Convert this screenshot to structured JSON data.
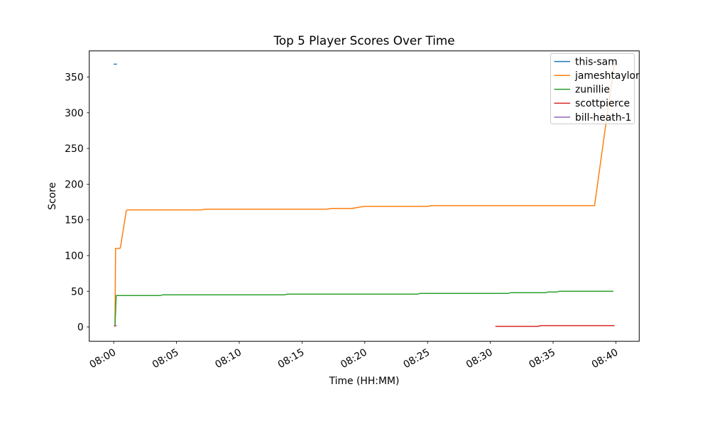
{
  "figure": {
    "background": "#ffffff",
    "title": "Top 5 Player Scores Over Time"
  },
  "chart_data": {
    "type": "line",
    "title": "Top 5 Player Scores Over Time",
    "xlabel": "Time (HH:MM)",
    "ylabel": "Score",
    "grid": false,
    "legend_position": "upper right",
    "x_unit": "minutes after 08:00",
    "xlim": [
      -1.95,
      41.86
    ],
    "ylim": [
      -20,
      386.6
    ],
    "xticks": {
      "values": [
        0,
        5,
        10,
        15,
        20,
        25,
        30,
        35,
        40
      ],
      "labels": [
        "08:00",
        "08:05",
        "08:10",
        "08:15",
        "08:20",
        "08:25",
        "08:30",
        "08:35",
        "08:40"
      ]
    },
    "yticks": [
      0,
      50,
      100,
      150,
      200,
      250,
      300,
      350
    ],
    "series": [
      {
        "name": "this-sam",
        "color": "#1f77b4",
        "points": [
          [
            0.0,
            368
          ],
          [
            0.25,
            368
          ]
        ]
      },
      {
        "name": "jameshtaylor",
        "color": "#ff7f0e",
        "points": [
          [
            0.1,
            0
          ],
          [
            0.15,
            110
          ],
          [
            0.5,
            110
          ],
          [
            0.55,
            113
          ],
          [
            0.7,
            130
          ],
          [
            1.0,
            163
          ],
          [
            1.1,
            164
          ],
          [
            7.0,
            164
          ],
          [
            7.3,
            165
          ],
          [
            17.0,
            165
          ],
          [
            17.3,
            166
          ],
          [
            19.0,
            166
          ],
          [
            19.3,
            167
          ],
          [
            19.6,
            168
          ],
          [
            20.0,
            169
          ],
          [
            25.0,
            169
          ],
          [
            25.3,
            170
          ],
          [
            38.3,
            170
          ],
          [
            39.2,
            284
          ],
          [
            39.9,
            371
          ]
        ]
      },
      {
        "name": "zunillie",
        "color": "#2ca02c",
        "points": [
          [
            0.1,
            1
          ],
          [
            0.2,
            44
          ],
          [
            3.7,
            44
          ],
          [
            3.9,
            45
          ],
          [
            13.6,
            45
          ],
          [
            13.8,
            46
          ],
          [
            24.2,
            46
          ],
          [
            24.4,
            47
          ],
          [
            31.4,
            47
          ],
          [
            31.6,
            48
          ],
          [
            34.4,
            48
          ],
          [
            34.6,
            49
          ],
          [
            35.3,
            49
          ],
          [
            35.5,
            50
          ],
          [
            39.8,
            50
          ]
        ]
      },
      {
        "name": "scottpierce",
        "color": "#d62728",
        "points": [
          [
            30.4,
            1
          ],
          [
            33.8,
            1
          ],
          [
            34.0,
            2
          ],
          [
            39.9,
            2
          ]
        ]
      },
      {
        "name": "bill-heath-1",
        "color": "#9467bd",
        "points": [
          [
            0.0,
            2
          ],
          [
            0.25,
            2
          ]
        ]
      }
    ],
    "legend": [
      "this-sam",
      "jameshtaylor",
      "zunillie",
      "scottpierce",
      "bill-heath-1"
    ]
  }
}
